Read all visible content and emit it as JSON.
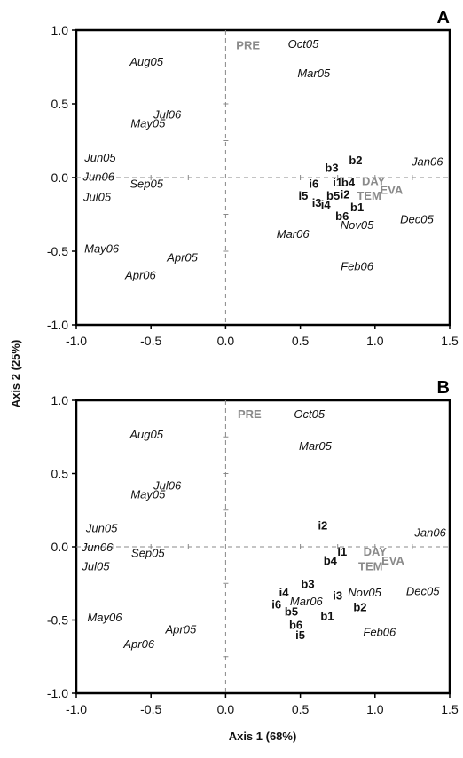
{
  "axis_titles": {
    "x": "Axis 1 (68%)",
    "y": "Axis 2 (25%)"
  },
  "chart_data": [
    {
      "type": "scatter",
      "panel": "A",
      "xlabel": "",
      "ylabel": "",
      "xlim": [
        -1.0,
        1.5
      ],
      "ylim": [
        -1.0,
        1.0
      ],
      "xticks": [
        "-1.0",
        "-0.5",
        "0.0",
        "0.5",
        "1.0",
        "1.5"
      ],
      "yticks": [
        "-1.0",
        "-0.5",
        "0.0",
        "0.5",
        "1.0"
      ],
      "grid": false,
      "reference_lines": "dashed lines at x = 0 and y = 0",
      "series": [
        {
          "group": "months",
          "points": [
            {
              "label": "Aug05",
              "x": -0.53,
              "y": 0.79
            },
            {
              "label": "Oct05",
              "x": 0.52,
              "y": 0.91
            },
            {
              "label": "Mar05",
              "x": 0.59,
              "y": 0.71
            },
            {
              "label": "Jul06",
              "x": -0.39,
              "y": 0.43
            },
            {
              "label": "May05",
              "x": -0.52,
              "y": 0.37
            },
            {
              "label": "Jun05",
              "x": -0.84,
              "y": 0.14
            },
            {
              "label": "Jun06",
              "x": -0.85,
              "y": 0.01
            },
            {
              "label": "Sep05",
              "x": -0.53,
              "y": -0.04
            },
            {
              "label": "Jul05",
              "x": -0.86,
              "y": -0.13
            },
            {
              "label": "Jan06",
              "x": 1.35,
              "y": 0.11
            },
            {
              "label": "Dec05",
              "x": 1.28,
              "y": -0.28
            },
            {
              "label": "Nov05",
              "x": 0.88,
              "y": -0.32
            },
            {
              "label": "Mar06",
              "x": 0.45,
              "y": -0.38
            },
            {
              "label": "May06",
              "x": -0.83,
              "y": -0.48
            },
            {
              "label": "Apr05",
              "x": -0.29,
              "y": -0.54
            },
            {
              "label": "Apr06",
              "x": -0.57,
              "y": -0.66
            },
            {
              "label": "Feb06",
              "x": 0.88,
              "y": -0.6
            }
          ]
        },
        {
          "group": "codes",
          "points": [
            {
              "label": "b2",
              "x": 0.87,
              "y": 0.12
            },
            {
              "label": "b3",
              "x": 0.71,
              "y": 0.07
            },
            {
              "label": "i6",
              "x": 0.59,
              "y": -0.04
            },
            {
              "label": "i1",
              "x": 0.75,
              "y": -0.03
            },
            {
              "label": "b4",
              "x": 0.82,
              "y": -0.03
            },
            {
              "label": "i5",
              "x": 0.52,
              "y": -0.12
            },
            {
              "label": "b5",
              "x": 0.72,
              "y": -0.12
            },
            {
              "label": "i2",
              "x": 0.8,
              "y": -0.11
            },
            {
              "label": "i3",
              "x": 0.61,
              "y": -0.17
            },
            {
              "label": "i4",
              "x": 0.67,
              "y": -0.18
            },
            {
              "label": "b1",
              "x": 0.88,
              "y": -0.2
            },
            {
              "label": "b6",
              "x": 0.78,
              "y": -0.26
            }
          ]
        },
        {
          "group": "variables",
          "points": [
            {
              "label": "PRE",
              "x": 0.15,
              "y": 0.9
            },
            {
              "label": "DAY",
              "x": 0.99,
              "y": -0.02
            },
            {
              "label": "TEM",
              "x": 0.96,
              "y": -0.12
            },
            {
              "label": "EVA",
              "x": 1.11,
              "y": -0.08
            }
          ]
        }
      ]
    },
    {
      "type": "scatter",
      "panel": "B",
      "xlabel": "",
      "ylabel": "",
      "xlim": [
        -1.0,
        1.5
      ],
      "ylim": [
        -1.0,
        1.0
      ],
      "xticks": [
        "-1.0",
        "-0.5",
        "0.0",
        "0.5",
        "1.0",
        "1.5"
      ],
      "yticks": [
        "-1.0",
        "-0.5",
        "0.0",
        "0.5",
        "1.0"
      ],
      "grid": false,
      "reference_lines": "dashed lines at x = 0 and y = 0",
      "series": [
        {
          "group": "months",
          "points": [
            {
              "label": "Oct05",
              "x": 0.56,
              "y": 0.91
            },
            {
              "label": "Aug05",
              "x": -0.53,
              "y": 0.77
            },
            {
              "label": "Mar05",
              "x": 0.6,
              "y": 0.69
            },
            {
              "label": "Jul06",
              "x": -0.39,
              "y": 0.42
            },
            {
              "label": "May05",
              "x": -0.52,
              "y": 0.36
            },
            {
              "label": "Jun05",
              "x": -0.83,
              "y": 0.13
            },
            {
              "label": "Jun06",
              "x": -0.86,
              "y": 0.0
            },
            {
              "label": "Sep05",
              "x": -0.52,
              "y": -0.04
            },
            {
              "label": "Jul05",
              "x": -0.87,
              "y": -0.13
            },
            {
              "label": "Jan06",
              "x": 1.37,
              "y": 0.1
            },
            {
              "label": "Nov05",
              "x": 0.93,
              "y": -0.31
            },
            {
              "label": "Dec05",
              "x": 1.32,
              "y": -0.3
            },
            {
              "label": "Mar06",
              "x": 0.54,
              "y": -0.37
            },
            {
              "label": "May06",
              "x": -0.81,
              "y": -0.48
            },
            {
              "label": "Apr05",
              "x": -0.3,
              "y": -0.56
            },
            {
              "label": "Apr06",
              "x": -0.58,
              "y": -0.66
            },
            {
              "label": "Feb06",
              "x": 1.03,
              "y": -0.58
            }
          ]
        },
        {
          "group": "codes",
          "points": [
            {
              "label": "i2",
              "x": 0.65,
              "y": 0.15
            },
            {
              "label": "i1",
              "x": 0.78,
              "y": -0.03
            },
            {
              "label": "b4",
              "x": 0.7,
              "y": -0.09
            },
            {
              "label": "b3",
              "x": 0.55,
              "y": -0.25
            },
            {
              "label": "i4",
              "x": 0.39,
              "y": -0.31
            },
            {
              "label": "i3",
              "x": 0.75,
              "y": -0.33
            },
            {
              "label": "i6",
              "x": 0.34,
              "y": -0.39
            },
            {
              "label": "b2",
              "x": 0.9,
              "y": -0.41
            },
            {
              "label": "b5",
              "x": 0.44,
              "y": -0.44
            },
            {
              "label": "b1",
              "x": 0.68,
              "y": -0.47
            },
            {
              "label": "b6",
              "x": 0.47,
              "y": -0.53
            },
            {
              "label": "i5",
              "x": 0.5,
              "y": -0.6
            }
          ]
        },
        {
          "group": "variables",
          "points": [
            {
              "label": "PRE",
              "x": 0.16,
              "y": 0.91
            },
            {
              "label": "DAY",
              "x": 1.0,
              "y": -0.03
            },
            {
              "label": "TEM",
              "x": 0.97,
              "y": -0.13
            },
            {
              "label": "EVA",
              "x": 1.12,
              "y": -0.09
            }
          ]
        }
      ]
    }
  ]
}
